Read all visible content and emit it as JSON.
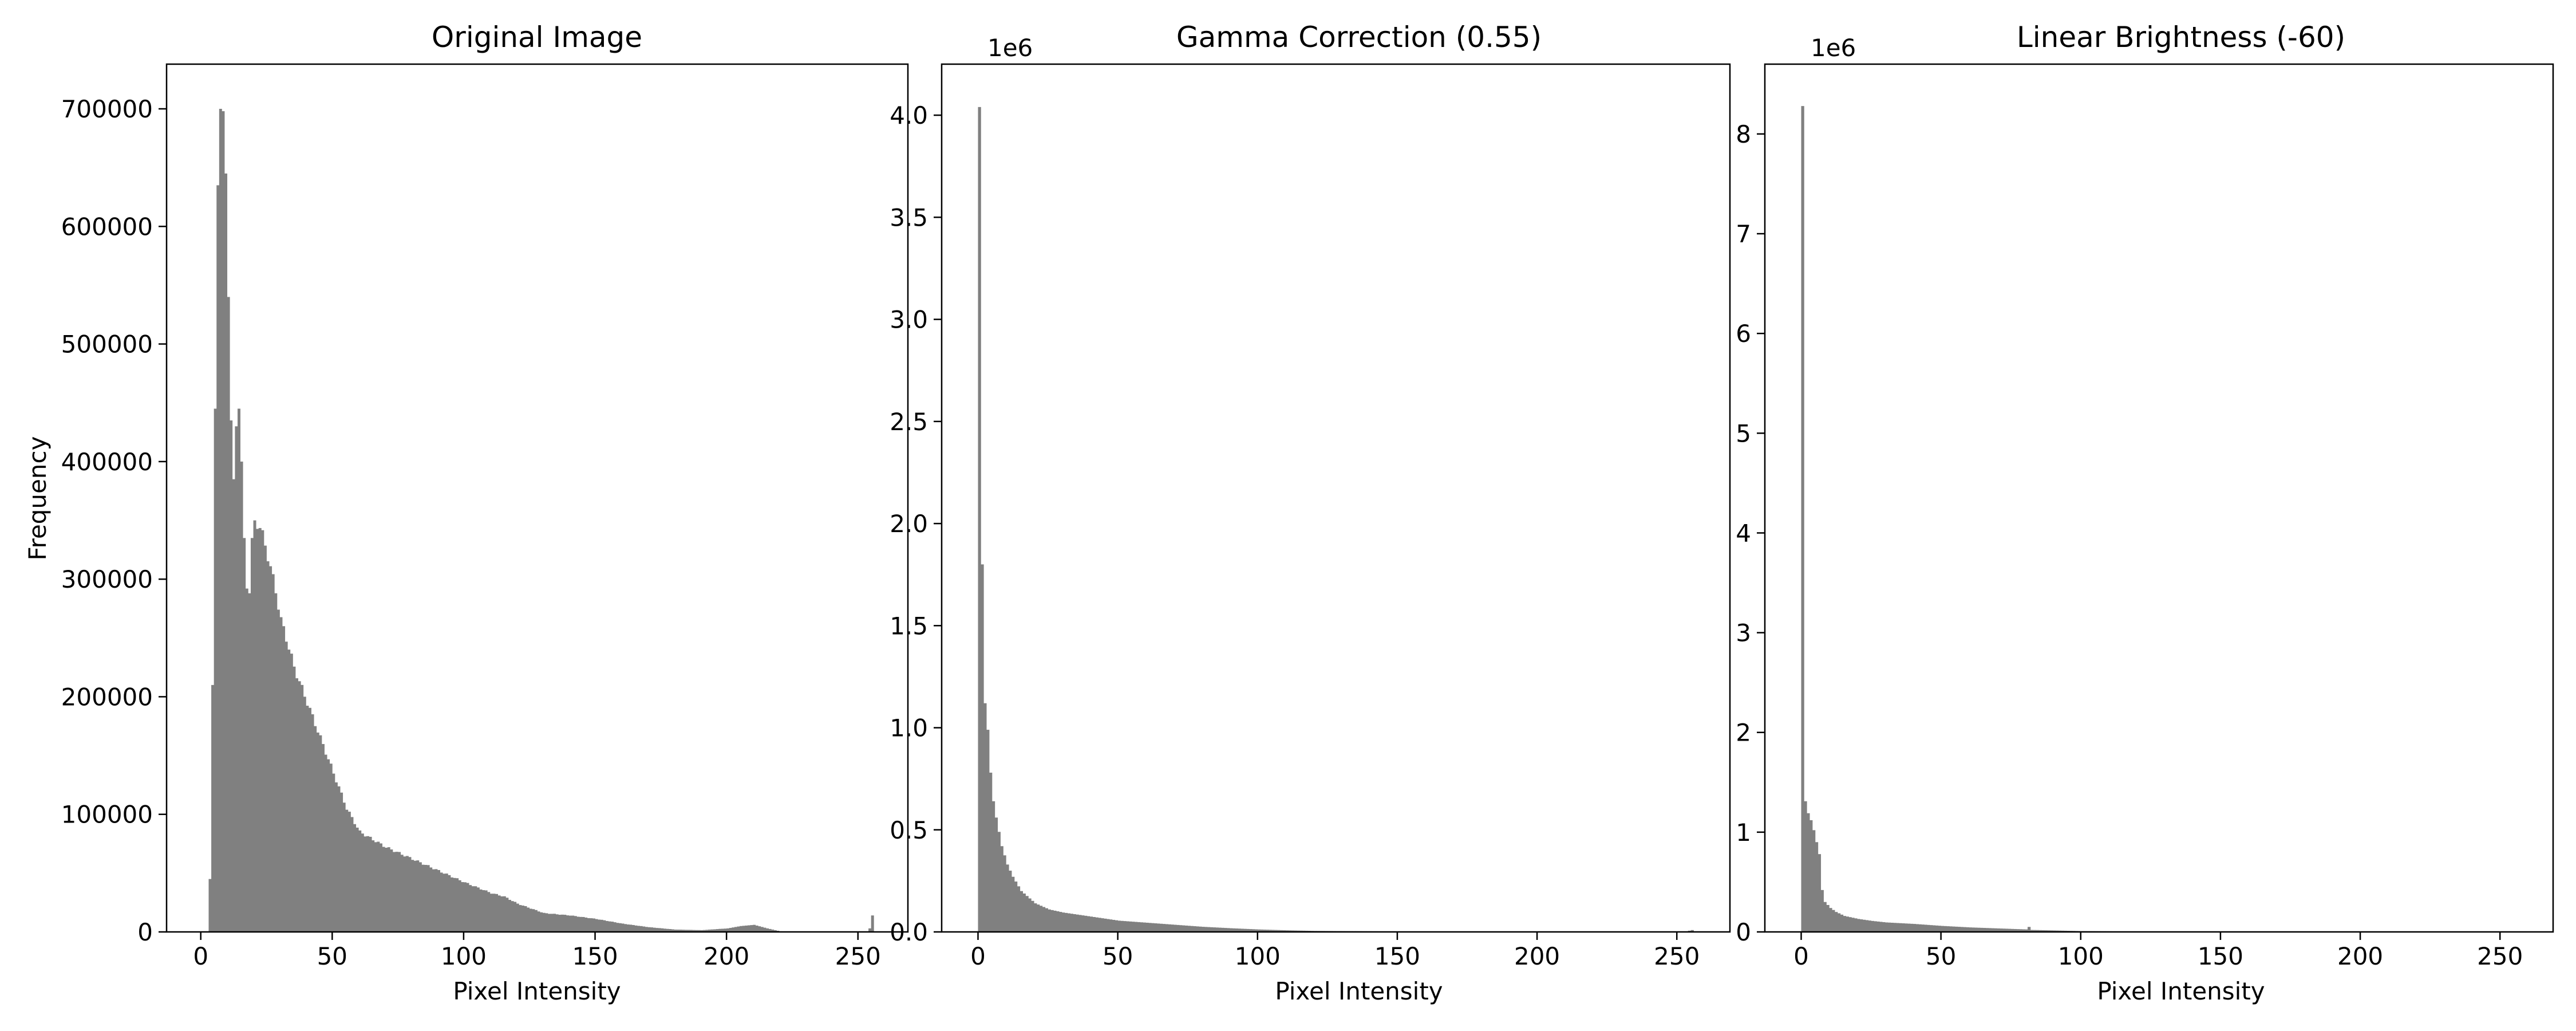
{
  "chart_data": [
    {
      "type": "bar",
      "title": "Original Image",
      "xlabel": "Pixel Intensity",
      "ylabel": "Frequency",
      "xlim": [
        -13,
        269
      ],
      "ylim": [
        0,
        738000
      ],
      "xticks": [
        0,
        50,
        100,
        150,
        200,
        250
      ],
      "yticks": [
        0,
        100000,
        200000,
        300000,
        400000,
        500000,
        600000,
        700000
      ],
      "ytick_labels": [
        "0",
        "100000",
        "200000",
        "300000",
        "400000",
        "500000",
        "600000",
        "700000"
      ],
      "y_offset_label": "",
      "bar_color": "#808080",
      "histogram": {
        "anchors": [
          [
            0,
            0
          ],
          [
            2,
            0
          ],
          [
            3,
            45000
          ],
          [
            4,
            210000
          ],
          [
            5,
            445000
          ],
          [
            6,
            635000
          ],
          [
            7,
            700000
          ],
          [
            8,
            698000
          ],
          [
            9,
            645000
          ],
          [
            10,
            540000
          ],
          [
            11,
            435000
          ],
          [
            12,
            385000
          ],
          [
            13,
            430000
          ],
          [
            14,
            445000
          ],
          [
            15,
            400000
          ],
          [
            16,
            335000
          ],
          [
            17,
            292000
          ],
          [
            18,
            288000
          ],
          [
            19,
            335000
          ],
          [
            20,
            350000
          ],
          [
            22,
            345000
          ],
          [
            25,
            320000
          ],
          [
            28,
            290000
          ],
          [
            30,
            265000
          ],
          [
            32,
            250000
          ],
          [
            35,
            225000
          ],
          [
            40,
            195000
          ],
          [
            45,
            165000
          ],
          [
            50,
            135000
          ],
          [
            55,
            105000
          ],
          [
            60,
            85000
          ],
          [
            70,
            72000
          ],
          [
            80,
            62000
          ],
          [
            90,
            52000
          ],
          [
            100,
            42000
          ],
          [
            110,
            33000
          ],
          [
            115,
            30000
          ],
          [
            120,
            24000
          ],
          [
            130,
            16000
          ],
          [
            140,
            14000
          ],
          [
            150,
            11000
          ],
          [
            160,
            7000
          ],
          [
            170,
            4000
          ],
          [
            180,
            2000
          ],
          [
            190,
            1500
          ],
          [
            200,
            3000
          ],
          [
            205,
            5000
          ],
          [
            210,
            6000
          ],
          [
            215,
            3000
          ],
          [
            220,
            500
          ],
          [
            225,
            200
          ],
          [
            240,
            100
          ],
          [
            253,
            200
          ],
          [
            254,
            3000
          ],
          [
            255,
            14000
          ]
        ],
        "fine_noise": true
      }
    },
    {
      "type": "bar",
      "title": "Gamma Correction (0.55)",
      "xlabel": "Pixel Intensity",
      "ylabel": "",
      "xlim": [
        -13,
        269
      ],
      "ylim": [
        0,
        4250000
      ],
      "xticks": [
        0,
        50,
        100,
        150,
        200,
        250
      ],
      "yticks": [
        0,
        500000,
        1000000,
        1500000,
        2000000,
        2500000,
        3000000,
        3500000,
        4000000
      ],
      "ytick_labels": [
        "0.0",
        "0.5",
        "1.0",
        "1.5",
        "2.0",
        "2.5",
        "3.0",
        "3.5",
        "4.0"
      ],
      "y_offset_label": "1e6",
      "bar_color": "#808080",
      "histogram": {
        "anchors": [
          [
            0,
            4040000
          ],
          [
            1,
            1800000
          ],
          [
            2,
            1120000
          ],
          [
            3,
            990000
          ],
          [
            4,
            780000
          ],
          [
            5,
            640000
          ],
          [
            6,
            560000
          ],
          [
            7,
            490000
          ],
          [
            8,
            420000
          ],
          [
            10,
            330000
          ],
          [
            12,
            270000
          ],
          [
            15,
            200000
          ],
          [
            20,
            140000
          ],
          [
            25,
            110000
          ],
          [
            30,
            95000
          ],
          [
            40,
            75000
          ],
          [
            50,
            55000
          ],
          [
            60,
            45000
          ],
          [
            70,
            35000
          ],
          [
            80,
            25000
          ],
          [
            90,
            18000
          ],
          [
            100,
            12000
          ],
          [
            110,
            8000
          ],
          [
            120,
            5000
          ],
          [
            140,
            3000
          ],
          [
            160,
            1500
          ],
          [
            180,
            1000
          ],
          [
            200,
            800
          ],
          [
            240,
            600
          ],
          [
            253,
            2000
          ],
          [
            254,
            6000
          ],
          [
            255,
            9000
          ]
        ],
        "fine_noise": false
      }
    },
    {
      "type": "bar",
      "title": "Linear Brightness (-60)",
      "xlabel": "Pixel Intensity",
      "ylabel": "",
      "xlim": [
        -13,
        269
      ],
      "ylim": [
        0,
        8700000
      ],
      "xticks": [
        0,
        50,
        100,
        150,
        200,
        250
      ],
      "yticks": [
        0,
        1000000,
        2000000,
        3000000,
        4000000,
        5000000,
        6000000,
        7000000,
        8000000
      ],
      "ytick_labels": [
        "0",
        "1",
        "2",
        "3",
        "4",
        "5",
        "6",
        "7",
        "8"
      ],
      "y_offset_label": "1e6",
      "bar_color": "#808080",
      "histogram": {
        "anchors": [
          [
            0,
            8280000
          ],
          [
            1,
            1310000
          ],
          [
            2,
            1190000
          ],
          [
            3,
            1120000
          ],
          [
            4,
            1020000
          ],
          [
            5,
            900000
          ],
          [
            6,
            780000
          ],
          [
            7,
            420000
          ],
          [
            8,
            300000
          ],
          [
            10,
            240000
          ],
          [
            12,
            200000
          ],
          [
            15,
            160000
          ],
          [
            20,
            130000
          ],
          [
            25,
            110000
          ],
          [
            30,
            95000
          ],
          [
            40,
            80000
          ],
          [
            50,
            60000
          ],
          [
            60,
            45000
          ],
          [
            70,
            35000
          ],
          [
            80,
            25000
          ],
          [
            81,
            50000
          ],
          [
            82,
            20000
          ],
          [
            90,
            15000
          ],
          [
            100,
            8000
          ],
          [
            120,
            4000
          ],
          [
            150,
            2000
          ],
          [
            200,
            1000
          ],
          [
            255,
            500
          ]
        ],
        "fine_noise": false
      }
    }
  ]
}
